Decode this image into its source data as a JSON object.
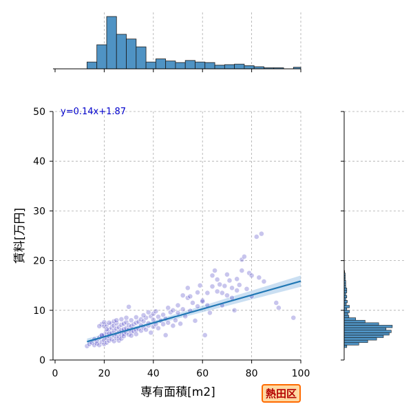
{
  "chart_data": {
    "type": "scatter",
    "xlabel": "専有面積[m2]",
    "ylabel": "賃料[万円]",
    "xlim": [
      0,
      100
    ],
    "ylim": [
      0,
      50
    ],
    "xticks": [
      "0",
      "20",
      "40",
      "60",
      "80",
      "100"
    ],
    "yticks": [
      "0",
      "10",
      "20",
      "30",
      "40",
      "50"
    ],
    "grid": true,
    "regression": {
      "label": "y=0.14x+1.87",
      "slope": 0.14,
      "intercept": 1.87,
      "x_range": [
        13,
        100
      ]
    },
    "points": [
      [
        13,
        2.8
      ],
      [
        14,
        3.2
      ],
      [
        15,
        3.5
      ],
      [
        16,
        3.0
      ],
      [
        16,
        4.2
      ],
      [
        17,
        3.8
      ],
      [
        17,
        3.3
      ],
      [
        18,
        4.5
      ],
      [
        18,
        3.0
      ],
      [
        19,
        3.6
      ],
      [
        19,
        4.9
      ],
      [
        19,
        7.2
      ],
      [
        20,
        3.2
      ],
      [
        20,
        4.0
      ],
      [
        20,
        5.1
      ],
      [
        20,
        6.8
      ],
      [
        21,
        3.5
      ],
      [
        21,
        4.4
      ],
      [
        21,
        5.6
      ],
      [
        21,
        7.0
      ],
      [
        22,
        3.9
      ],
      [
        22,
        4.8
      ],
      [
        22,
        6.1
      ],
      [
        22,
        5.3
      ],
      [
        23,
        4.2
      ],
      [
        23,
        5.4
      ],
      [
        23,
        6.5
      ],
      [
        23,
        7.3
      ],
      [
        24,
        3.8
      ],
      [
        24,
        4.9
      ],
      [
        24,
        5.9
      ],
      [
        24,
        6.9
      ],
      [
        25,
        4.4
      ],
      [
        25,
        5.2
      ],
      [
        25,
        6.3
      ],
      [
        25,
        7.4
      ],
      [
        26,
        4.6
      ],
      [
        26,
        5.6
      ],
      [
        26,
        6.6
      ],
      [
        26,
        3.9
      ],
      [
        27,
        5.0
      ],
      [
        27,
        6.0
      ],
      [
        27,
        7.1
      ],
      [
        27,
        4.3
      ],
      [
        28,
        5.3
      ],
      [
        28,
        6.2
      ],
      [
        28,
        7.3
      ],
      [
        28,
        4.8
      ],
      [
        29,
        5.5
      ],
      [
        29,
        6.4
      ],
      [
        29,
        7.6
      ],
      [
        30,
        5.1
      ],
      [
        30,
        6.1
      ],
      [
        30,
        7.0
      ],
      [
        30,
        10.7
      ],
      [
        31,
        5.6
      ],
      [
        31,
        6.8
      ],
      [
        31,
        4.9
      ],
      [
        32,
        5.8
      ],
      [
        32,
        7.2
      ],
      [
        33,
        6.0
      ],
      [
        33,
        7.5
      ],
      [
        33,
        5.2
      ],
      [
        34,
        6.3
      ],
      [
        34,
        7.7
      ],
      [
        35,
        5.9
      ],
      [
        35,
        7.0
      ],
      [
        35,
        8.2
      ],
      [
        36,
        6.5
      ],
      [
        36,
        7.8
      ],
      [
        37,
        6.1
      ],
      [
        37,
        8.5
      ],
      [
        38,
        6.9
      ],
      [
        38,
        7.4
      ],
      [
        39,
        5.5
      ],
      [
        39,
        8.8
      ],
      [
        40,
        6.7
      ],
      [
        40,
        8.1
      ],
      [
        40,
        9.3
      ],
      [
        41,
        7.2
      ],
      [
        42,
        6.4
      ],
      [
        42,
        8.7
      ],
      [
        43,
        7.9
      ],
      [
        44,
        9.1
      ],
      [
        45,
        5.0
      ],
      [
        45,
        8.3
      ],
      [
        46,
        7.5
      ],
      [
        47,
        9.6
      ],
      [
        48,
        6.9
      ],
      [
        48,
        10.0
      ],
      [
        49,
        8.0
      ],
      [
        50,
        9.5
      ],
      [
        51,
        7.3
      ],
      [
        52,
        10.2
      ],
      [
        52,
        13.0
      ],
      [
        53,
        8.8
      ],
      [
        54,
        12.5
      ],
      [
        54,
        14.5
      ],
      [
        55,
        9.9
      ],
      [
        56,
        11.5
      ],
      [
        57,
        7.9
      ],
      [
        58,
        10.8
      ],
      [
        59,
        15.0
      ],
      [
        60,
        12.0
      ],
      [
        61,
        5.0
      ],
      [
        62,
        13.5
      ],
      [
        63,
        9.5
      ],
      [
        64,
        14.8
      ],
      [
        64,
        17.0
      ],
      [
        65,
        18.0
      ],
      [
        66,
        13.8
      ],
      [
        67,
        15.2
      ],
      [
        68,
        11.0
      ],
      [
        69,
        14.9
      ],
      [
        70,
        13.0
      ],
      [
        71,
        16.0
      ],
      [
        72,
        14.5
      ],
      [
        73,
        10.0
      ],
      [
        74,
        16.3
      ],
      [
        75,
        15.1
      ],
      [
        76,
        20.2
      ],
      [
        77,
        20.8
      ],
      [
        78,
        14.3
      ],
      [
        79,
        17.5
      ],
      [
        80,
        17.0
      ],
      [
        82,
        24.8
      ],
      [
        84,
        25.4
      ],
      [
        85,
        15.8
      ],
      [
        90,
        11.5
      ],
      [
        91,
        10.5
      ],
      [
        97,
        8.5
      ],
      [
        18,
        6.8
      ],
      [
        19,
        5.0
      ],
      [
        20,
        7.6
      ],
      [
        21,
        6.2
      ],
      [
        22,
        7.5
      ],
      [
        24,
        7.8
      ],
      [
        25,
        8.0
      ],
      [
        27,
        8.2
      ],
      [
        29,
        8.5
      ],
      [
        31,
        8.0
      ],
      [
        33,
        8.6
      ],
      [
        36,
        9.0
      ],
      [
        38,
        9.6
      ],
      [
        41,
        9.8
      ],
      [
        44,
        7.2
      ],
      [
        46,
        10.5
      ],
      [
        50,
        11.0
      ],
      [
        55,
        12.8
      ],
      [
        58,
        13.6
      ],
      [
        60,
        11.8
      ],
      [
        62,
        11.0
      ],
      [
        66,
        16.2
      ],
      [
        68,
        13.5
      ],
      [
        70,
        17.2
      ],
      [
        72,
        12.5
      ],
      [
        74,
        14.0
      ],
      [
        76,
        18.0
      ],
      [
        80,
        12.8
      ],
      [
        83,
        16.6
      ]
    ],
    "top_hist": {
      "bins": [
        13,
        15,
        17,
        19,
        21,
        23,
        25,
        27,
        29,
        31,
        33,
        35,
        37,
        39,
        41,
        43,
        45,
        47,
        49,
        51,
        53,
        55,
        57,
        59,
        61,
        63,
        65,
        67,
        69,
        71,
        73,
        75,
        77,
        79,
        81,
        83,
        85,
        87,
        89,
        91,
        93,
        95,
        97,
        99
      ],
      "counts": [
        0,
        0,
        0,
        0,
        0,
        0,
        0,
        0,
        0,
        0,
        0,
        0,
        0,
        0,
        0,
        0,
        0,
        0,
        0,
        0,
        0,
        0,
        0,
        0,
        0,
        0,
        0,
        0,
        0,
        0,
        0,
        0,
        0,
        0,
        0,
        0,
        0,
        0,
        0,
        0,
        0,
        0,
        0
      ],
      "bars": [
        [
          13,
          17,
          0.13
        ],
        [
          17,
          21,
          0.46
        ],
        [
          21,
          25,
          1.0
        ],
        [
          25,
          29,
          0.66
        ],
        [
          29,
          33,
          0.57
        ],
        [
          33,
          37,
          0.42
        ],
        [
          37,
          41,
          0.13
        ],
        [
          41,
          45,
          0.19
        ],
        [
          45,
          49,
          0.15
        ],
        [
          49,
          53,
          0.12
        ],
        [
          53,
          57,
          0.16
        ],
        [
          57,
          61,
          0.13
        ],
        [
          61,
          65,
          0.12
        ],
        [
          65,
          69,
          0.07
        ],
        [
          69,
          73,
          0.08
        ],
        [
          73,
          77,
          0.09
        ],
        [
          77,
          81,
          0.06
        ],
        [
          81,
          85,
          0.04
        ],
        [
          85,
          89,
          0.02
        ],
        [
          89,
          93,
          0.02
        ],
        [
          93,
          97,
          0.0
        ],
        [
          97,
          100,
          0.03
        ]
      ]
    },
    "right_hist": {
      "bars": [
        [
          2.5,
          3.0,
          0.05
        ],
        [
          3.0,
          3.5,
          0.28
        ],
        [
          3.5,
          4.0,
          0.45
        ],
        [
          4.0,
          4.5,
          0.62
        ],
        [
          4.5,
          5.0,
          0.75
        ],
        [
          5.0,
          5.5,
          0.86
        ],
        [
          5.5,
          6.0,
          0.9
        ],
        [
          6.0,
          6.5,
          0.8
        ],
        [
          6.5,
          7.0,
          0.92
        ],
        [
          7.0,
          7.5,
          0.66
        ],
        [
          7.5,
          8.0,
          0.4
        ],
        [
          8.0,
          8.5,
          0.22
        ],
        [
          8.5,
          9.0,
          0.09
        ],
        [
          9.0,
          9.5,
          0.07
        ],
        [
          9.5,
          10.0,
          0.1
        ],
        [
          10.0,
          10.5,
          0.05
        ],
        [
          10.5,
          11.0,
          0.1
        ],
        [
          11.0,
          11.5,
          0.04
        ],
        [
          11.5,
          12.0,
          0.06
        ],
        [
          12.0,
          12.5,
          0.03
        ],
        [
          12.5,
          13.0,
          0.05
        ],
        [
          13.0,
          13.5,
          0.03
        ],
        [
          13.5,
          14.0,
          0.05
        ],
        [
          14.0,
          14.5,
          0.05
        ],
        [
          14.5,
          15.0,
          0.03
        ],
        [
          15.0,
          15.5,
          0.03
        ],
        [
          15.5,
          16.0,
          0.03
        ],
        [
          16.0,
          16.5,
          0.02
        ],
        [
          16.5,
          17.0,
          0.02
        ],
        [
          17.0,
          17.5,
          0.02
        ],
        [
          17.5,
          18.0,
          0.01
        ]
      ]
    },
    "colors": {
      "points": "#3b2dbd",
      "regression": "#1f77b4",
      "band": "#9ec4e8",
      "hist": "#4f93c4"
    },
    "badge": "熱田区"
  }
}
